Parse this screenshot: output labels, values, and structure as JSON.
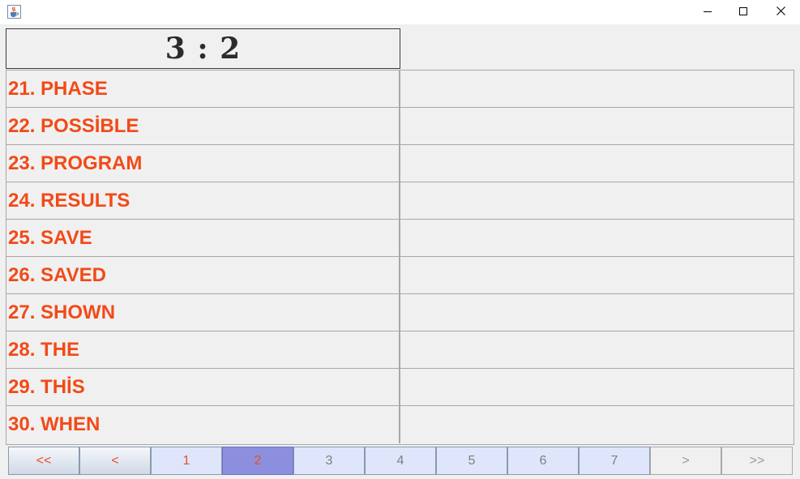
{
  "window": {
    "title": "",
    "icon": "java-cup-icon",
    "controls": [
      "minimize-icon",
      "maximize-icon",
      "close-icon"
    ]
  },
  "score": "3 : 2",
  "rows": [
    {
      "left": "21. PHASE",
      "right": ""
    },
    {
      "left": "22. POSSİBLE",
      "right": ""
    },
    {
      "left": "23. PROGRAM",
      "right": ""
    },
    {
      "left": "24. RESULTS",
      "right": ""
    },
    {
      "left": "25. SAVE",
      "right": ""
    },
    {
      "left": "26. SAVED",
      "right": ""
    },
    {
      "left": "27. SHOWN",
      "right": ""
    },
    {
      "left": "28. THE",
      "right": ""
    },
    {
      "left": "29. THİS",
      "right": ""
    },
    {
      "left": "30. WHEN",
      "right": ""
    }
  ],
  "pager": {
    "first": "<<",
    "prev": "<",
    "pages": [
      "1",
      "2",
      "3",
      "4",
      "5",
      "6",
      "7"
    ],
    "current_page": "2",
    "next": ">",
    "last": ">>"
  },
  "colors": {
    "word": "#f24a17",
    "current_page_bg": "#8c8fdd",
    "page_bg": "#dfe5fb"
  }
}
